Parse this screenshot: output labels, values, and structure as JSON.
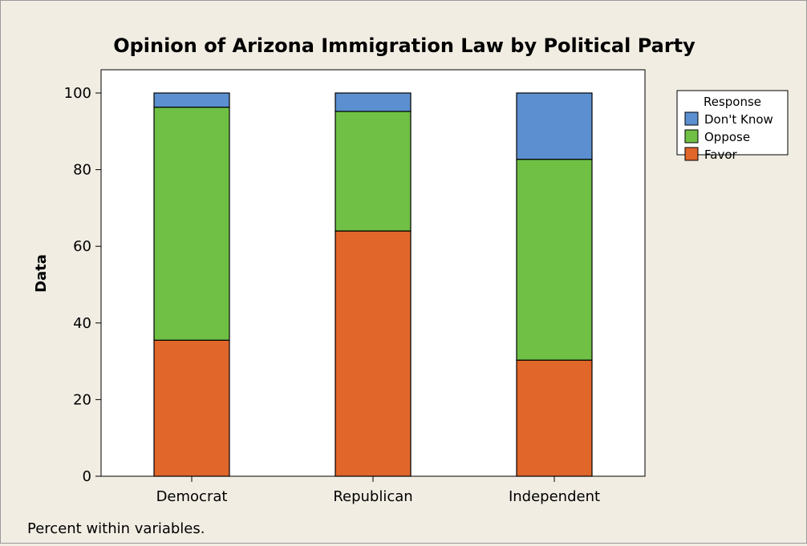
{
  "chart_data": {
    "type": "bar",
    "stacked": true,
    "title": "Opinion of Arizona Immigration Law by Political Party",
    "xlabel": "",
    "ylabel": "Data",
    "ylim": [
      0,
      100
    ],
    "yticks": [
      0,
      20,
      40,
      60,
      80,
      100
    ],
    "grid": false,
    "legend_position": "top-right",
    "legend_title": "Response",
    "categories": [
      "Democrat",
      "Republican",
      "Independent"
    ],
    "series": [
      {
        "name": "Favor",
        "color": "#e0662a",
        "values": [
          35.5,
          64.0,
          30.3
        ]
      },
      {
        "name": "Oppose",
        "color": "#6fc045",
        "values": [
          60.8,
          31.2,
          52.4
        ]
      },
      {
        "name": "Don't Know",
        "color": "#5b8fcf",
        "values": [
          3.7,
          4.8,
          17.3
        ]
      }
    ],
    "legend_order": [
      "Don't Know",
      "Oppose",
      "Favor"
    ],
    "footnote": "Percent within variables."
  }
}
